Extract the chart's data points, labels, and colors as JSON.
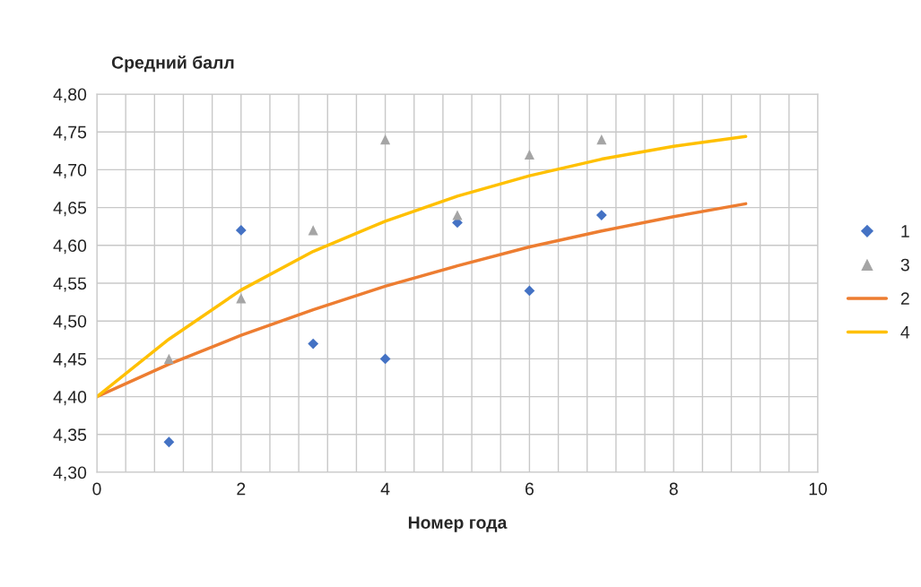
{
  "chart_data": {
    "type": "scatter",
    "ylabel": "Средний балл",
    "xlabel": "Номер года",
    "xlim": [
      0,
      10
    ],
    "ylim": [
      4.3,
      4.8
    ],
    "xticks": [
      0,
      {
        "value": 0.4,
        "label": null
      },
      {
        "value": 0.8,
        "label": null
      },
      {
        "value": 1.2,
        "label": null
      },
      {
        "value": 1.6,
        "label": null
      },
      2,
      {
        "value": 2.4,
        "label": null
      },
      {
        "value": 2.8,
        "label": null
      },
      {
        "value": 3.2,
        "label": null
      },
      {
        "value": 3.6,
        "label": null
      },
      4,
      {
        "value": 4.4,
        "label": null
      },
      {
        "value": 4.8,
        "label": null
      },
      {
        "value": 5.2,
        "label": null
      },
      {
        "value": 5.6,
        "label": null
      },
      6,
      {
        "value": 6.4,
        "label": null
      },
      {
        "value": 6.8,
        "label": null
      },
      {
        "value": 7.2,
        "label": null
      },
      {
        "value": 7.6,
        "label": null
      },
      8,
      {
        "value": 8.4,
        "label": null
      },
      {
        "value": 8.8,
        "label": null
      },
      {
        "value": 9.2,
        "label": null
      },
      {
        "value": 9.6,
        "label": null
      },
      10
    ],
    "yticks": [
      {
        "value": 4.3,
        "label": "4,30"
      },
      {
        "value": 4.35,
        "label": "4,35"
      },
      {
        "value": 4.4,
        "label": "4,40"
      },
      {
        "value": 4.45,
        "label": "4,45"
      },
      {
        "value": 4.5,
        "label": "4,50"
      },
      {
        "value": 4.55,
        "label": "4,55"
      },
      {
        "value": 4.6,
        "label": "4,60"
      },
      {
        "value": 4.65,
        "label": "4,65"
      },
      {
        "value": 4.7,
        "label": "4,70"
      },
      {
        "value": 4.75,
        "label": "4,75"
      },
      {
        "value": 4.8,
        "label": "4,80"
      }
    ],
    "grid": true,
    "legend": "right",
    "series": [
      {
        "name": "1",
        "marker": "diamond",
        "color": "#4472c4",
        "x": [
          1,
          2,
          3,
          4,
          5,
          6,
          7
        ],
        "values": [
          4.34,
          4.62,
          4.47,
          4.45,
          4.63,
          4.54,
          4.64
        ]
      },
      {
        "name": "3",
        "marker": "triangle",
        "color": "#a5a5a5",
        "x": [
          1,
          2,
          3,
          4,
          5,
          6,
          7
        ],
        "values": [
          4.45,
          4.53,
          4.62,
          4.74,
          4.64,
          4.72,
          4.74
        ]
      },
      {
        "name": "2",
        "type": "line",
        "marker": "none",
        "color": "#ed7d31",
        "x": [
          0,
          1,
          2,
          3,
          4,
          5,
          6,
          7,
          8,
          9
        ],
        "values": [
          4.4,
          4.443,
          4.481,
          4.515,
          4.546,
          4.573,
          4.598,
          4.619,
          4.638,
          4.655
        ]
      },
      {
        "name": "4",
        "type": "line",
        "marker": "none",
        "color": "#ffc000",
        "x": [
          0,
          1,
          2,
          3,
          4,
          5,
          6,
          7,
          8,
          9
        ],
        "values": [
          4.4,
          4.476,
          4.541,
          4.592,
          4.632,
          4.665,
          4.692,
          4.714,
          4.731,
          4.744
        ]
      }
    ]
  }
}
